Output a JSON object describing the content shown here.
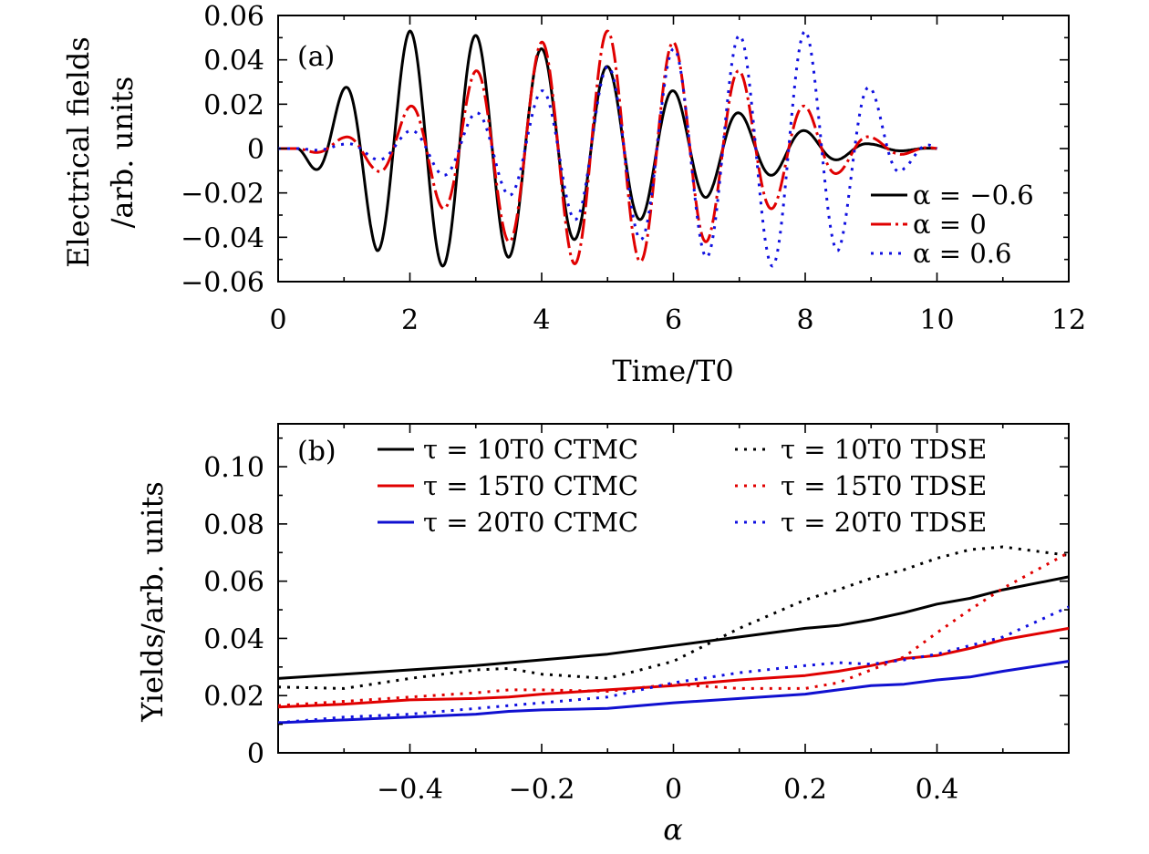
{
  "chart_data": [
    {
      "type": "line",
      "panel_label": "(a)",
      "xlabel": "Time/T0",
      "ylabel_line1": "Electrical fields",
      "ylabel_line2": "/arb. units",
      "xlim": [
        0,
        12
      ],
      "ylim": [
        -0.06,
        0.06
      ],
      "xticks": [
        0,
        2,
        4,
        6,
        8,
        10,
        12
      ],
      "xtick_labels": [
        "0",
        "2",
        "4",
        "6",
        "8",
        "10",
        "12"
      ],
      "yticks": [
        -0.06,
        -0.04,
        -0.02,
        0,
        0.02,
        0.04,
        0.06
      ],
      "ytick_labels": [
        "−0.06",
        "−0.04",
        "−0.02",
        "0",
        "0.02",
        "0.04",
        "0.06"
      ],
      "legend_position": "right",
      "series": [
        {
          "name": "α = −0.6",
          "alpha": -0.6,
          "color": "#000000",
          "dash": "solid",
          "peaks": [
            [
              1.0,
              0.027
            ],
            [
              1.5,
              -0.046
            ],
            [
              2.0,
              0.053
            ],
            [
              2.5,
              -0.053
            ],
            [
              3.0,
              0.051
            ],
            [
              3.5,
              -0.049
            ],
            [
              4.0,
              0.045
            ],
            [
              4.5,
              -0.041
            ],
            [
              5.0,
              0.037
            ],
            [
              5.5,
              -0.032
            ],
            [
              6.0,
              0.026
            ],
            [
              6.5,
              -0.022
            ],
            [
              7.0,
              0.016
            ],
            [
              7.5,
              -0.012
            ],
            [
              8.0,
              0.008
            ],
            [
              8.5,
              -0.005
            ],
            [
              9.0,
              0.002
            ]
          ]
        },
        {
          "name": "α = 0",
          "alpha": 0,
          "color": "#e00000",
          "dash": "dashdot",
          "peaks": [
            [
              1.0,
              0.005
            ],
            [
              1.5,
              -0.01
            ],
            [
              2.0,
              0.019
            ],
            [
              2.5,
              -0.027
            ],
            [
              3.0,
              0.035
            ],
            [
              3.5,
              -0.042
            ],
            [
              4.0,
              0.048
            ],
            [
              4.5,
              -0.052
            ],
            [
              5.0,
              0.053
            ],
            [
              5.5,
              -0.051
            ],
            [
              6.0,
              0.048
            ],
            [
              6.5,
              -0.042
            ],
            [
              7.0,
              0.035
            ],
            [
              7.5,
              -0.027
            ],
            [
              8.0,
              0.019
            ],
            [
              8.5,
              -0.011
            ],
            [
              9.0,
              0.005
            ]
          ]
        },
        {
          "name": "α = 0.6",
          "alpha": 0.6,
          "color": "#1010e0",
          "dash": "dotted",
          "peaks": [
            [
              1.0,
              0.002
            ],
            [
              1.5,
              -0.005
            ],
            [
              2.0,
              0.008
            ],
            [
              2.5,
              -0.012
            ],
            [
              3.0,
              0.016
            ],
            [
              3.5,
              -0.021
            ],
            [
              4.0,
              0.026
            ],
            [
              4.5,
              -0.032
            ],
            [
              5.0,
              0.037
            ],
            [
              5.5,
              -0.041
            ],
            [
              6.0,
              0.045
            ],
            [
              6.5,
              -0.049
            ],
            [
              7.0,
              0.051
            ],
            [
              7.5,
              -0.053
            ],
            [
              8.0,
              0.053
            ],
            [
              8.5,
              -0.046
            ],
            [
              9.0,
              0.027
            ],
            [
              9.5,
              -0.009
            ]
          ]
        }
      ]
    },
    {
      "type": "line",
      "panel_label": "(b)",
      "xlabel": "α",
      "ylabel": "Yields/arb. units",
      "xlim": [
        -0.6,
        0.6
      ],
      "ylim": [
        0,
        0.115
      ],
      "xticks": [
        -0.4,
        -0.2,
        0,
        0.2,
        0.4
      ],
      "xtick_labels": [
        "−0.4",
        "−0.2",
        "0",
        "0.2",
        "0.4"
      ],
      "yticks": [
        0,
        0.02,
        0.04,
        0.06,
        0.08,
        0.1
      ],
      "ytick_labels": [
        "0",
        "0.02",
        "0.04",
        "0.06",
        "0.08",
        "0.10"
      ],
      "legend_position": "top",
      "x": [
        -0.6,
        -0.5,
        -0.4,
        -0.3,
        -0.25,
        -0.2,
        -0.1,
        0,
        0.1,
        0.2,
        0.25,
        0.3,
        0.35,
        0.4,
        0.45,
        0.5,
        0.6
      ],
      "series": [
        {
          "name": "τ = 10T0 CTMC",
          "color": "#000000",
          "dash": "solid",
          "values": [
            0.026,
            0.0275,
            0.029,
            0.0305,
            0.0315,
            0.0325,
            0.0345,
            0.0375,
            0.0405,
            0.0435,
            0.0445,
            0.0465,
            0.049,
            0.052,
            0.054,
            0.057,
            0.0615
          ]
        },
        {
          "name": "τ = 15T0 CTMC",
          "color": "#e00000",
          "dash": "solid",
          "values": [
            0.016,
            0.017,
            0.0185,
            0.019,
            0.0195,
            0.0205,
            0.022,
            0.0235,
            0.0255,
            0.027,
            0.0285,
            0.0305,
            0.033,
            0.034,
            0.0365,
            0.0395,
            0.0435
          ]
        },
        {
          "name": "τ = 20T0 CTMC",
          "color": "#1010d0",
          "dash": "solid",
          "values": [
            0.0105,
            0.0115,
            0.0125,
            0.0135,
            0.0145,
            0.015,
            0.0155,
            0.0175,
            0.019,
            0.0205,
            0.022,
            0.0235,
            0.024,
            0.0255,
            0.0265,
            0.0285,
            0.032
          ]
        },
        {
          "name": "τ = 10T0 TDSE",
          "color": "#000000",
          "dash": "dotted",
          "values": [
            0.023,
            0.0225,
            0.026,
            0.029,
            0.0295,
            0.0275,
            0.026,
            0.032,
            0.0435,
            0.0535,
            0.057,
            0.061,
            0.064,
            0.068,
            0.071,
            0.072,
            0.069
          ]
        },
        {
          "name": "τ = 15T0 TDSE",
          "color": "#e00000",
          "dash": "dotted",
          "values": [
            0.0165,
            0.018,
            0.0195,
            0.021,
            0.022,
            0.022,
            0.0215,
            0.024,
            0.0225,
            0.0225,
            0.0245,
            0.029,
            0.0335,
            0.042,
            0.05,
            0.0575,
            0.07
          ]
        },
        {
          "name": "τ = 20T0 TDSE",
          "color": "#1010e0",
          "dash": "dotted",
          "values": [
            0.0105,
            0.0125,
            0.0135,
            0.0155,
            0.0165,
            0.0175,
            0.0195,
            0.0245,
            0.028,
            0.0305,
            0.0315,
            0.031,
            0.0325,
            0.0345,
            0.0375,
            0.0405,
            0.051
          ]
        }
      ]
    }
  ]
}
